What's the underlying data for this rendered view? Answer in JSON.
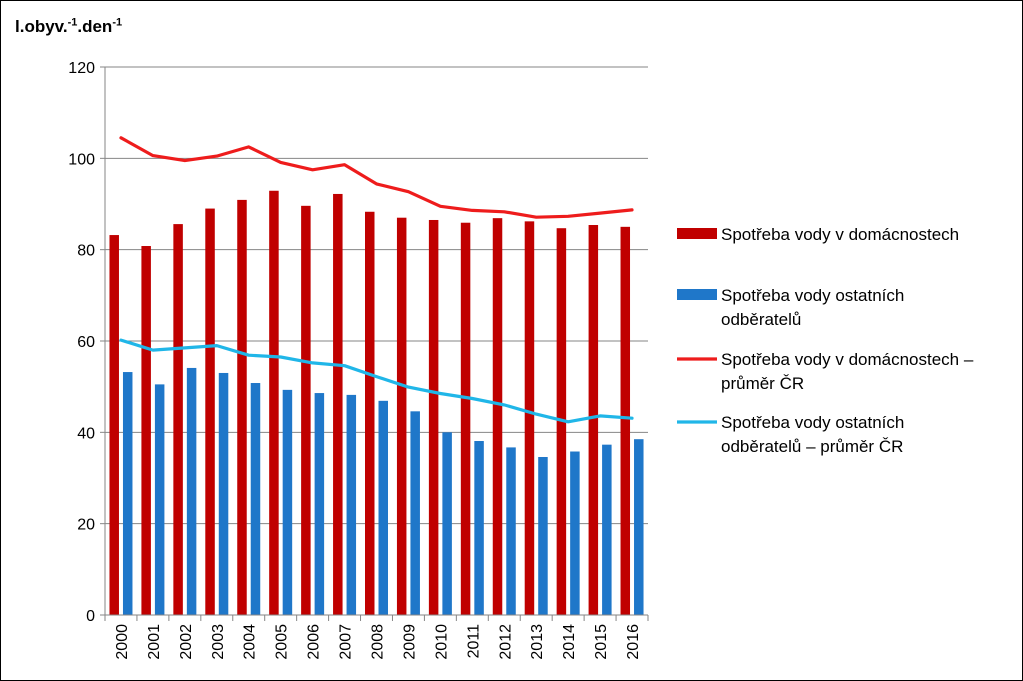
{
  "chart_data": {
    "type": "bar",
    "ylabel_parts": {
      "base1": "l.obyv.",
      "sup1": "-1",
      "base2": ".den",
      "sup2": "-1"
    },
    "ylim": [
      0,
      120
    ],
    "yticks": [
      "0",
      "20",
      "40",
      "60",
      "80",
      "100",
      "120"
    ],
    "yticks_values": [
      0,
      20,
      40,
      60,
      80,
      100,
      120
    ],
    "grid": true,
    "legend_position": "right",
    "categories": [
      "2000",
      "2001",
      "2002",
      "2003",
      "2004",
      "2005",
      "2006",
      "2007",
      "2008",
      "2009",
      "2010",
      "2011",
      "2012",
      "2013",
      "2014",
      "2015",
      "2016"
    ],
    "series": [
      {
        "name": "Spotřeba vody v domácnostech",
        "kind": "bar",
        "color": "#c00000",
        "legend_lines": [
          "Spotřeba vody v domácnostech"
        ],
        "values": [
          83.2,
          80.8,
          85.6,
          89.0,
          90.9,
          92.9,
          89.6,
          92.2,
          88.3,
          87.0,
          86.5,
          85.9,
          86.9,
          86.2,
          84.7,
          85.4,
          85.0
        ]
      },
      {
        "name": "Spotřeba vody ostatních odběratelů",
        "kind": "bar",
        "color": "#1f77c9",
        "legend_lines": [
          "Spotřeba vody ostatních",
          "odběratelů"
        ],
        "values": [
          53.2,
          50.5,
          54.1,
          53.0,
          50.8,
          49.3,
          48.6,
          48.2,
          46.9,
          44.6,
          40.0,
          38.1,
          36.7,
          34.6,
          35.8,
          37.3,
          38.5
        ]
      },
      {
        "name": "Spotřeba vody v domácnostech – průměr ČR",
        "kind": "line",
        "color": "#ee1c1c",
        "legend_lines": [
          "Spotřeba vody v domácnostech –",
          "průměr ČR"
        ],
        "values": [
          104.5,
          100.6,
          99.5,
          100.5,
          102.5,
          99.1,
          97.5,
          98.6,
          94.4,
          92.7,
          89.5,
          88.6,
          88.3,
          87.1,
          87.3,
          88.0,
          88.7
        ]
      },
      {
        "name": "Spotřeba vody ostatních odběratelů – průměr ČR",
        "kind": "line",
        "color": "#20b6e8",
        "legend_lines": [
          "Spotřeba vody ostatních",
          "odběratelů – průměr ČR"
        ],
        "values": [
          60.2,
          58.0,
          58.5,
          59.0,
          56.9,
          56.5,
          55.2,
          54.6,
          52.2,
          49.9,
          48.5,
          47.4,
          46.0,
          44.0,
          42.3,
          43.6,
          43.1
        ]
      }
    ]
  }
}
